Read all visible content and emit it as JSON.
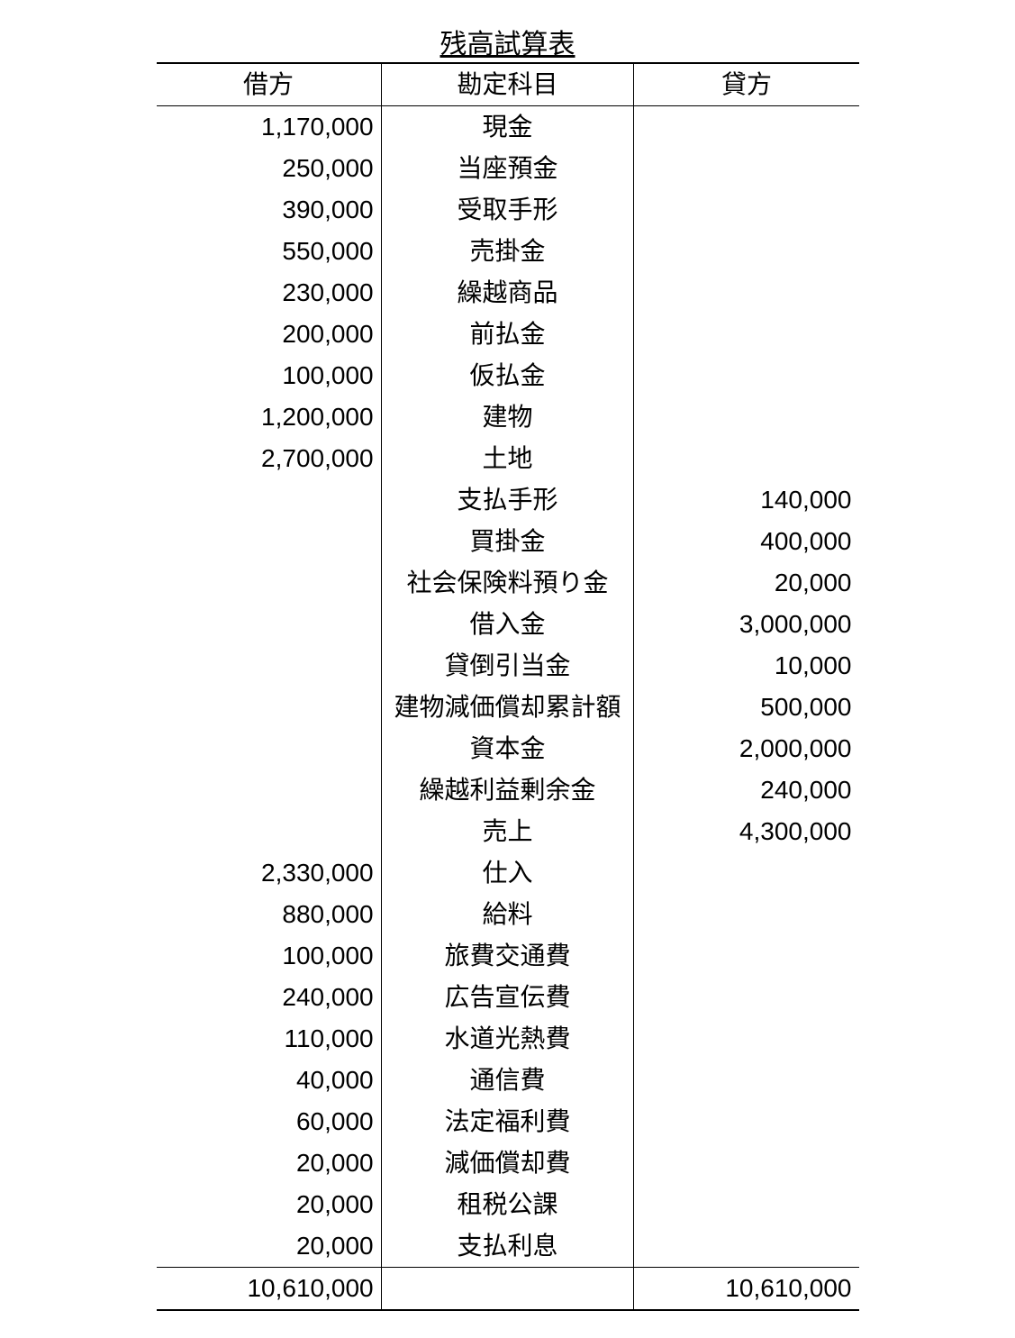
{
  "title": "残高試算表",
  "columns": [
    "借方",
    "勘定科目",
    "貸方"
  ],
  "rows": [
    {
      "debit": "1,170,000",
      "account": "現金",
      "credit": ""
    },
    {
      "debit": "250,000",
      "account": "当座預金",
      "credit": ""
    },
    {
      "debit": "390,000",
      "account": "受取手形",
      "credit": ""
    },
    {
      "debit": "550,000",
      "account": "売掛金",
      "credit": ""
    },
    {
      "debit": "230,000",
      "account": "繰越商品",
      "credit": ""
    },
    {
      "debit": "200,000",
      "account": "前払金",
      "credit": ""
    },
    {
      "debit": "100,000",
      "account": "仮払金",
      "credit": ""
    },
    {
      "debit": "1,200,000",
      "account": "建物",
      "credit": ""
    },
    {
      "debit": "2,700,000",
      "account": "土地",
      "credit": ""
    },
    {
      "debit": "",
      "account": "支払手形",
      "credit": "140,000"
    },
    {
      "debit": "",
      "account": "買掛金",
      "credit": "400,000"
    },
    {
      "debit": "",
      "account": "社会保険料預り金",
      "credit": "20,000"
    },
    {
      "debit": "",
      "account": "借入金",
      "credit": "3,000,000"
    },
    {
      "debit": "",
      "account": "貸倒引当金",
      "credit": "10,000"
    },
    {
      "debit": "",
      "account": "建物減価償却累計額",
      "credit": "500,000"
    },
    {
      "debit": "",
      "account": "資本金",
      "credit": "2,000,000"
    },
    {
      "debit": "",
      "account": "繰越利益剰余金",
      "credit": "240,000"
    },
    {
      "debit": "",
      "account": "売上",
      "credit": "4,300,000"
    },
    {
      "debit": "2,330,000",
      "account": "仕入",
      "credit": ""
    },
    {
      "debit": "880,000",
      "account": "給料",
      "credit": ""
    },
    {
      "debit": "100,000",
      "account": "旅費交通費",
      "credit": ""
    },
    {
      "debit": "240,000",
      "account": "広告宣伝費",
      "credit": ""
    },
    {
      "debit": "110,000",
      "account": "水道光熱費",
      "credit": ""
    },
    {
      "debit": "40,000",
      "account": "通信費",
      "credit": ""
    },
    {
      "debit": "60,000",
      "account": "法定福利費",
      "credit": ""
    },
    {
      "debit": "20,000",
      "account": "減価償却費",
      "credit": ""
    },
    {
      "debit": "20,000",
      "account": "租税公課",
      "credit": ""
    },
    {
      "debit": "20,000",
      "account": "支払利息",
      "credit": ""
    }
  ],
  "total": {
    "debit": "10,610,000",
    "account": "",
    "credit": "10,610,000"
  },
  "style": {
    "background_color": "#ffffff",
    "text_color": "#000000",
    "border_color": "#000000",
    "font_size_body": 28,
    "font_size_title": 30,
    "col_widths_pct": [
      32,
      36,
      32
    ]
  }
}
